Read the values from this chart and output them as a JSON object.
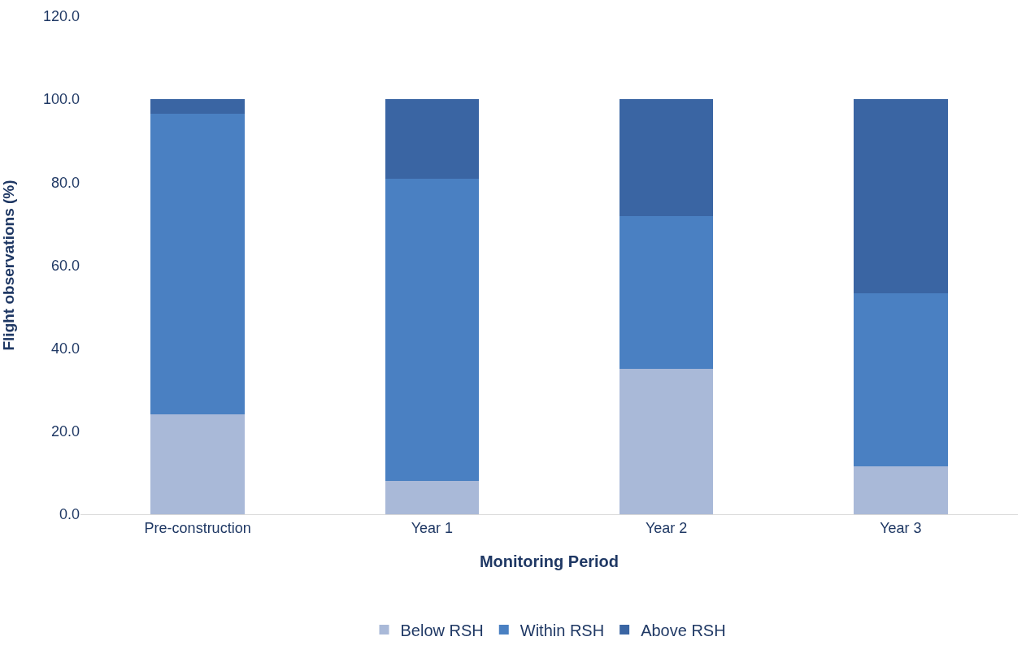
{
  "chart_data": {
    "type": "bar",
    "stacked": true,
    "xlabel": "Monitoring Period",
    "ylabel": "Flight observations (%)",
    "categories": [
      "Pre-construction",
      "Year 1",
      "Year 2",
      "Year 3"
    ],
    "series": [
      {
        "name": "Below RSH",
        "color": "#a9b9d8",
        "values": [
          24.0,
          8.0,
          35.1,
          11.5
        ]
      },
      {
        "name": "Within RSH",
        "color": "#4a80c2",
        "values": [
          72.6,
          72.9,
          36.7,
          41.7
        ]
      },
      {
        "name": "Above RSH",
        "color": "#3a65a3",
        "values": [
          3.4,
          19.1,
          28.2,
          46.8
        ]
      }
    ],
    "ylim": [
      0,
      120
    ],
    "yticks": [
      {
        "value": 0,
        "label": "0.0"
      },
      {
        "value": 20,
        "label": "20.0"
      },
      {
        "value": 40,
        "label": "40.0"
      },
      {
        "value": 60,
        "label": "60.0"
      },
      {
        "value": 80,
        "label": "80.0"
      },
      {
        "value": 100,
        "label": "100.0"
      },
      {
        "value": 120,
        "label": "120.0"
      }
    ],
    "legend": "bottom"
  }
}
